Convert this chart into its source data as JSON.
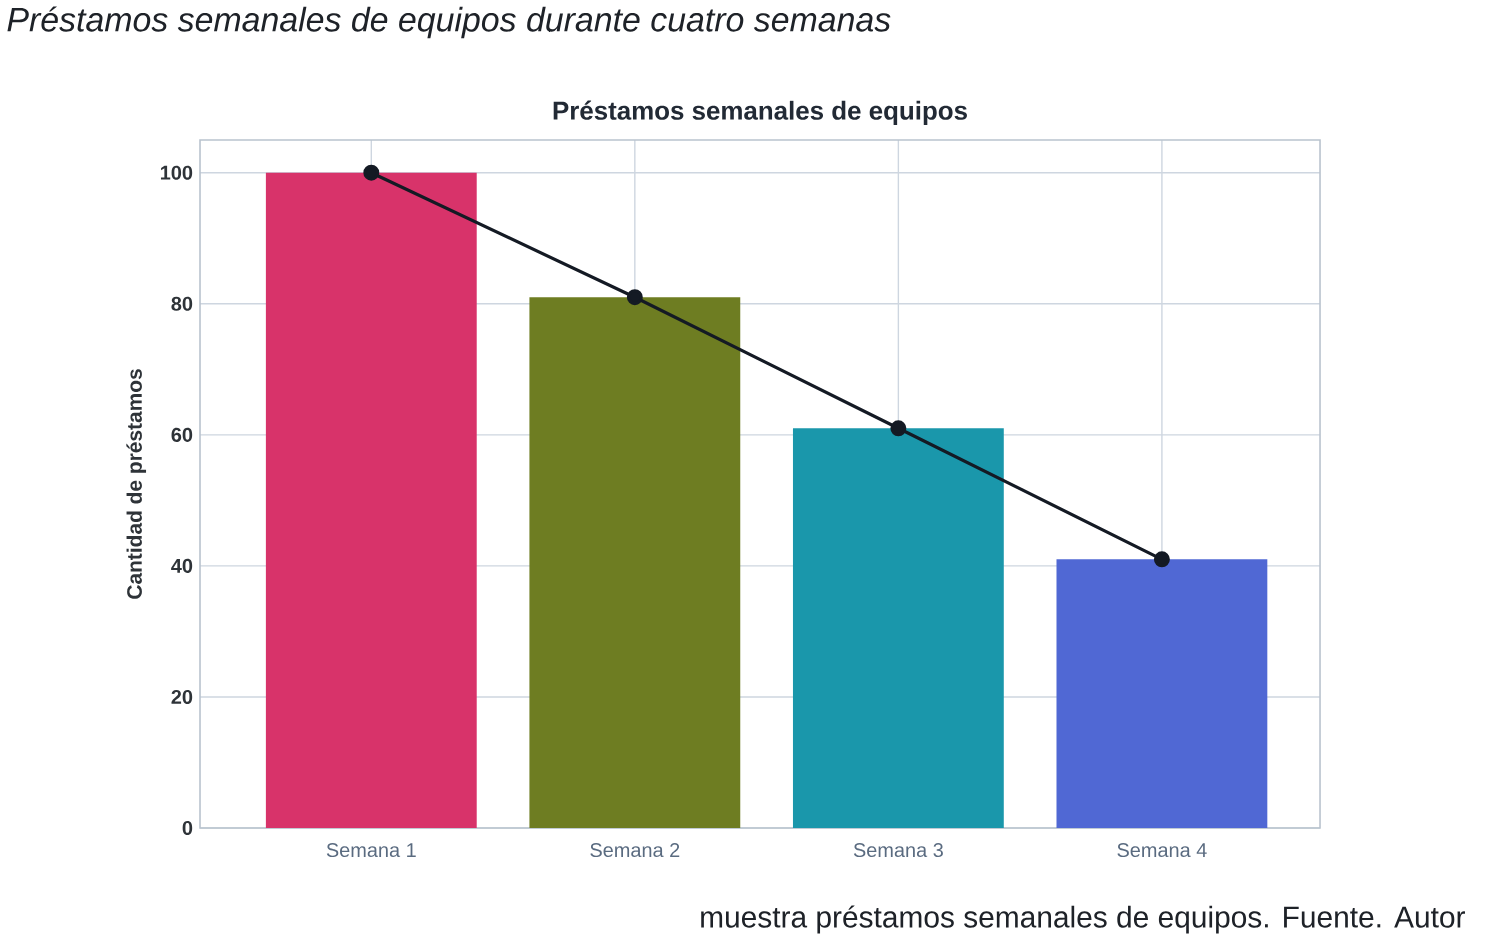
{
  "chart_data": {
    "type": "bar",
    "title": "Préstamos semanales de equipos durante cuatro semanas",
    "subtitle": "Préstamos semanales de equipos",
    "ylabel": "Cantidad de préstamos",
    "categories": [
      "Semana 1",
      "Semana 2",
      "Semana 3",
      "Semana 4"
    ],
    "series": [
      {
        "colors": [
          "#d8336a",
          "#6e7d22",
          "#1a97ab",
          "#5068d4"
        ],
        "values": [
          100,
          81,
          61,
          41
        ]
      },
      {
        "type": "line",
        "color": "#141a24",
        "marker": "circle",
        "values": [
          100,
          81,
          61,
          41
        ]
      }
    ],
    "ylim": [
      0,
      105
    ],
    "yticks": [
      0,
      20,
      40,
      60,
      80,
      100
    ],
    "grid": true,
    "annotations": [
      "muestra préstamos semanales de equipos. Fuente. Autor"
    ]
  }
}
